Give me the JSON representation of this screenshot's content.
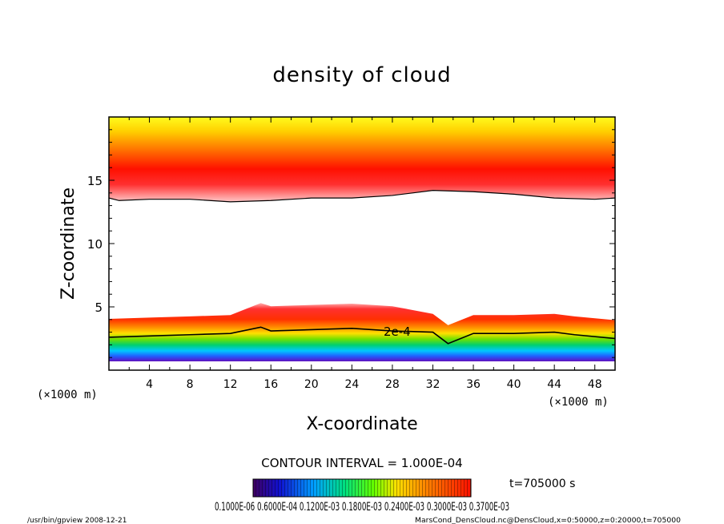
{
  "chart_data": {
    "type": "heatmap",
    "title": "density of cloud",
    "xlabel": "X-coordinate",
    "ylabel": "Z-coordinate",
    "x_unit": "(×1000 m)",
    "y_unit": "(×1000 m)",
    "xlim": [
      0,
      50
    ],
    "ylim": [
      0,
      20
    ],
    "x_ticks": [
      "4",
      "8",
      "12",
      "16",
      "20",
      "24",
      "28",
      "32",
      "36",
      "40",
      "44",
      "48"
    ],
    "y_ticks": [
      "5",
      "10",
      "15"
    ],
    "contour_interval_label": "CONTOUR INTERVAL = 1.000E-04",
    "contour_label": "2e-4",
    "time_label": "t=705000 s",
    "colorbar_labels": "0.1000E-06 0.6000E-04 0.1200E-03 0.1800E-03 0.2400E-03 0.3000E-03 0.3700E-03",
    "colorbar_range": [
      1e-07,
      0.00037
    ],
    "upper_cloud_layer_z": [
      13.5,
      19.9
    ],
    "lower_cloud_layer_z": [
      0.7,
      5.3
    ],
    "upper_boundary_z": [
      {
        "x": 0,
        "z": 13.6
      },
      {
        "x": 1,
        "z": 13.4
      },
      {
        "x": 4,
        "z": 13.5
      },
      {
        "x": 8,
        "z": 13.5
      },
      {
        "x": 12,
        "z": 13.3
      },
      {
        "x": 16,
        "z": 13.4
      },
      {
        "x": 20,
        "z": 13.6
      },
      {
        "x": 24,
        "z": 13.6
      },
      {
        "x": 28,
        "z": 13.8
      },
      {
        "x": 30,
        "z": 14.0
      },
      {
        "x": 32,
        "z": 14.2
      },
      {
        "x": 36,
        "z": 14.1
      },
      {
        "x": 40,
        "z": 13.9
      },
      {
        "x": 44,
        "z": 13.6
      },
      {
        "x": 48,
        "z": 13.5
      },
      {
        "x": 50,
        "z": 13.6
      }
    ],
    "contour_2e4_z": [
      {
        "x": 0,
        "z": 2.6
      },
      {
        "x": 4,
        "z": 2.7
      },
      {
        "x": 8,
        "z": 2.8
      },
      {
        "x": 12,
        "z": 2.9
      },
      {
        "x": 15,
        "z": 3.4
      },
      {
        "x": 16,
        "z": 3.1
      },
      {
        "x": 20,
        "z": 3.2
      },
      {
        "x": 24,
        "z": 3.3
      },
      {
        "x": 28,
        "z": 3.1
      },
      {
        "x": 32,
        "z": 3.0
      },
      {
        "x": 33.5,
        "z": 2.1
      },
      {
        "x": 36,
        "z": 2.9
      },
      {
        "x": 40,
        "z": 2.9
      },
      {
        "x": 44,
        "z": 3.0
      },
      {
        "x": 46,
        "z": 2.8
      },
      {
        "x": 50,
        "z": 2.5
      }
    ]
  },
  "footer": {
    "program": "/usr/bin/gpview   2008-12-21",
    "source": "MarsCond_DensCloud.nc@DensCloud,x=0:50000,z=0:20000,t=705000"
  }
}
